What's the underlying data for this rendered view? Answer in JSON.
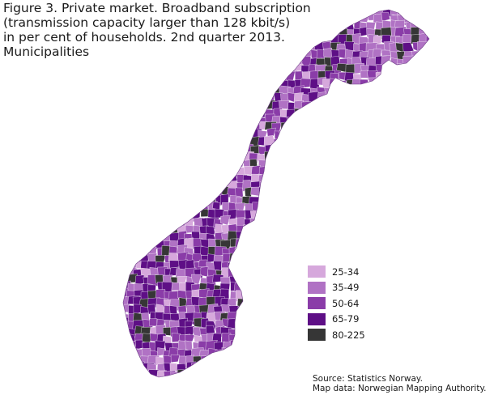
{
  "figure": {
    "title": "Figure 3. Private market. Broadband subscription\n(transmission capacity larger than 128 kbit/s)\nin per cent of households. 2nd quarter 2013.\nMunicipalities"
  },
  "legend": {
    "items": [
      {
        "label": "25-34",
        "color": "#d6a8dc"
      },
      {
        "label": "35-49",
        "color": "#b072c4"
      },
      {
        "label": "50-64",
        "color": "#8a3ca8"
      },
      {
        "label": "65-79",
        "color": "#5e0f86"
      },
      {
        "label": "80-225",
        "color": "#363636"
      }
    ]
  },
  "source": {
    "line1": "Source: Statistics Norway.",
    "line2": "Map data: Norwegian Mapping Authority."
  }
}
